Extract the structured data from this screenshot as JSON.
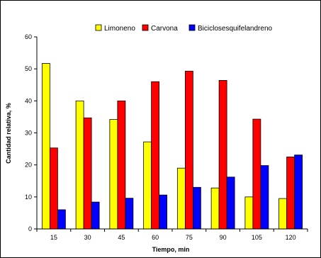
{
  "chart_data": {
    "type": "bar",
    "categories": [
      "15",
      "30",
      "45",
      "60",
      "75",
      "90",
      "105",
      "120"
    ],
    "series": [
      {
        "name": "Limoneno",
        "color": "#FFFF00",
        "values": [
          51.7,
          40.0,
          34.2,
          27.2,
          19.0,
          12.8,
          10.0,
          9.5
        ]
      },
      {
        "name": "Carvona",
        "color": "#FF0000",
        "values": [
          25.3,
          34.7,
          40.0,
          46.0,
          49.3,
          46.4,
          34.3,
          22.5
        ]
      },
      {
        "name": "Biciclosesquifelandreno",
        "color": "#0000FF",
        "values": [
          6.0,
          8.4,
          9.6,
          10.6,
          13.0,
          16.2,
          19.8,
          23.1
        ]
      }
    ],
    "xlabel": "Tiempo, min",
    "ylabel": "Cantidad relativa, %",
    "ylim": [
      0,
      60
    ],
    "yticks": [
      0,
      10,
      20,
      30,
      40,
      50,
      60
    ],
    "grid": false,
    "legend_position": "top"
  }
}
